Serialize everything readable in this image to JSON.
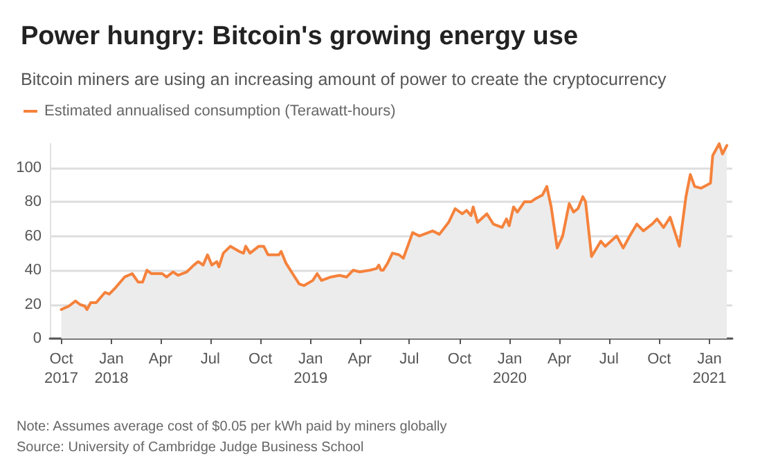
{
  "chart_data": {
    "type": "area",
    "title": "Power hungry: Bitcoin's growing energy use",
    "subtitle": "Bitcoin miners are using an increasing amount of power to create the cryptocurrency",
    "legend": "top left",
    "grid": "y",
    "marker": "none",
    "line_style": "solid",
    "xlim": [
      "2017-09-10",
      "2021-02-12"
    ],
    "xticks": [
      {
        "value": "2017-10-01",
        "label": "Oct\n2017"
      },
      {
        "value": "2018-01-01",
        "label": "Jan\n2018"
      },
      {
        "value": "2018-04-01",
        "label": "Apr"
      },
      {
        "value": "2018-07-01",
        "label": "Jul"
      },
      {
        "value": "2018-10-01",
        "label": "Oct"
      },
      {
        "value": "2019-01-01",
        "label": "Jan\n2019"
      },
      {
        "value": "2019-04-01",
        "label": "Apr"
      },
      {
        "value": "2019-07-01",
        "label": "Jul"
      },
      {
        "value": "2019-10-01",
        "label": "Oct"
      },
      {
        "value": "2020-01-01",
        "label": "Jan\n2020"
      },
      {
        "value": "2020-04-01",
        "label": "Apr"
      },
      {
        "value": "2020-07-01",
        "label": "Jul"
      },
      {
        "value": "2020-10-01",
        "label": "Oct"
      },
      {
        "value": "2021-01-01",
        "label": "Jan\n2021"
      }
    ],
    "ylim": [
      0,
      114
    ],
    "yticks": [
      0,
      20,
      40,
      60,
      80,
      100
    ],
    "annotations": [
      "Note: Assumes average cost of $0.05 per kWh paid by miners globally",
      "Source: University of Cambridge Judge Business School"
    ],
    "series": [
      {
        "name": "Estimated annualised consumption (Terawatt-hours)",
        "color": "#f5823c",
        "x": [
          "2017-10-01",
          "2017-10-15",
          "2017-10-27",
          "2017-11-04",
          "2017-11-13",
          "2017-11-17",
          "2017-11-24",
          "2017-12-04",
          "2017-12-20",
          "2017-12-28",
          "2018-01-09",
          "2018-01-25",
          "2018-02-08",
          "2018-02-19",
          "2018-02-27",
          "2018-03-07",
          "2018-03-15",
          "2018-04-04",
          "2018-04-12",
          "2018-04-24",
          "2018-05-03",
          "2018-05-19",
          "2018-06-01",
          "2018-06-09",
          "2018-06-18",
          "2018-06-26",
          "2018-07-04",
          "2018-07-13",
          "2018-07-17",
          "2018-07-25",
          "2018-08-07",
          "2018-08-23",
          "2018-08-31",
          "2018-09-04",
          "2018-09-12",
          "2018-09-28",
          "2018-10-07",
          "2018-10-15",
          "2018-11-04",
          "2018-11-08",
          "2018-11-17",
          "2018-11-29",
          "2018-12-11",
          "2018-12-20",
          "2019-01-05",
          "2019-01-13",
          "2019-01-21",
          "2019-02-07",
          "2019-02-23",
          "2019-03-08",
          "2019-03-20",
          "2019-04-01",
          "2019-04-20",
          "2019-05-02",
          "2019-05-06",
          "2019-05-10",
          "2019-05-14",
          "2019-05-22",
          "2019-05-31",
          "2019-06-12",
          "2019-06-20",
          "2019-07-07",
          "2019-07-19",
          "2019-08-13",
          "2019-08-25",
          "2019-09-11",
          "2019-09-23",
          "2019-10-06",
          "2019-10-14",
          "2019-10-22",
          "2019-10-26",
          "2019-11-03",
          "2019-11-20",
          "2019-12-02",
          "2019-12-18",
          "2019-12-26",
          "2019-12-31",
          "2020-01-08",
          "2020-01-15",
          "2020-01-28",
          "2020-02-09",
          "2020-02-18",
          "2020-03-01",
          "2020-03-09",
          "2020-03-17",
          "2020-03-28",
          "2020-04-07",
          "2020-04-19",
          "2020-04-27",
          "2020-05-05",
          "2020-05-14",
          "2020-05-19",
          "2020-05-30",
          "2020-06-16",
          "2020-06-24",
          "2020-07-15",
          "2020-07-27",
          "2020-08-08",
          "2020-08-21",
          "2020-09-02",
          "2020-09-18",
          "2020-09-27",
          "2020-10-09",
          "2020-10-21",
          "2020-10-30",
          "2020-11-07",
          "2020-11-19",
          "2020-11-27",
          "2020-12-05",
          "2020-12-17",
          "2021-01-03",
          "2021-01-07",
          "2021-01-19",
          "2021-01-25",
          "2021-02-02"
        ],
        "values": [
          17,
          19,
          22,
          20,
          19,
          17,
          21,
          21,
          27,
          26,
          30,
          36,
          38,
          33,
          33,
          40,
          38,
          38,
          36,
          39,
          37,
          39,
          43,
          45,
          43,
          49,
          43,
          45,
          42,
          50,
          54,
          51,
          50,
          54,
          50,
          54,
          54,
          49,
          49,
          51,
          44,
          38,
          32,
          31,
          34,
          38,
          34,
          36,
          37,
          36,
          40,
          39,
          40,
          41,
          43,
          40,
          40,
          44,
          50,
          49,
          47,
          62,
          60,
          63,
          61,
          68,
          76,
          73,
          75,
          72,
          77,
          68,
          73,
          67,
          65,
          70,
          66,
          77,
          74,
          80,
          80,
          82,
          84,
          89,
          77,
          53,
          60,
          79,
          74,
          76,
          83,
          80,
          48,
          57,
          54,
          60,
          53,
          60,
          67,
          63,
          67,
          70,
          65,
          71,
          62,
          54,
          83,
          96,
          89,
          88,
          91,
          107,
          114,
          108,
          113
        ]
      }
    ]
  }
}
